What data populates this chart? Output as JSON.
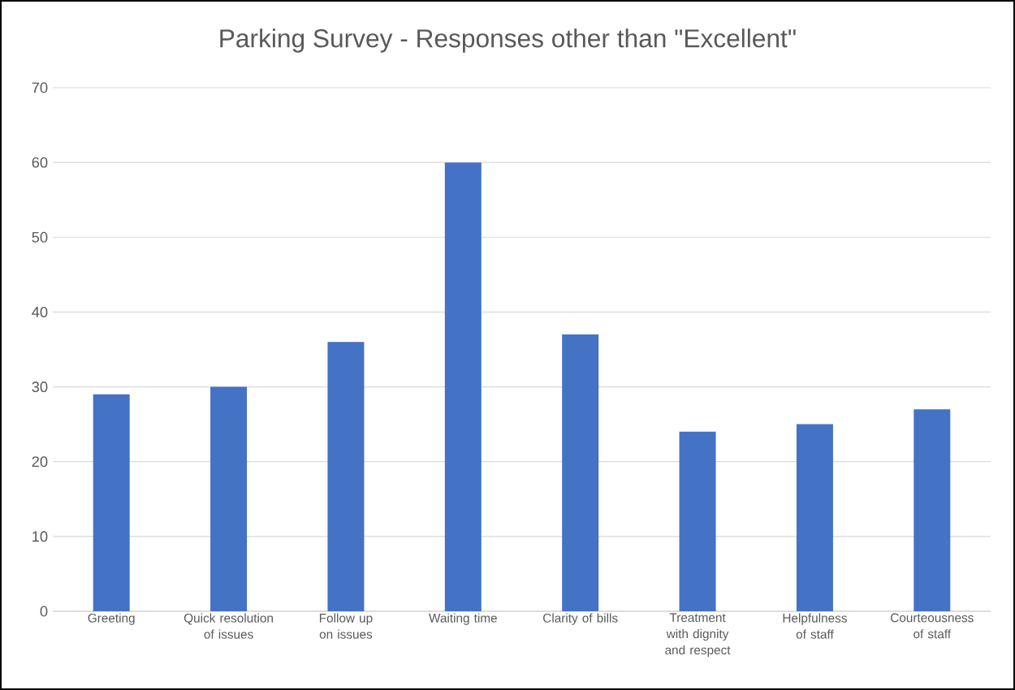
{
  "chart_data": {
    "type": "bar",
    "title": "Parking Survey - Responses other than \"Excellent\"",
    "categories": [
      "Greeting",
      "Quick resolution of issues",
      "Follow up on issues",
      "Waiting time",
      "Clarity of bills",
      "Treatment with dignity and respect",
      "Helpfulness of staff",
      "Courteousness of staff"
    ],
    "values": [
      29,
      30,
      36,
      60,
      37,
      24,
      25,
      27
    ],
    "color": "#4472c4",
    "ylim": [
      0,
      70
    ],
    "yticks": [
      0,
      10,
      20,
      30,
      40,
      50,
      60,
      70
    ],
    "grid": "y"
  }
}
